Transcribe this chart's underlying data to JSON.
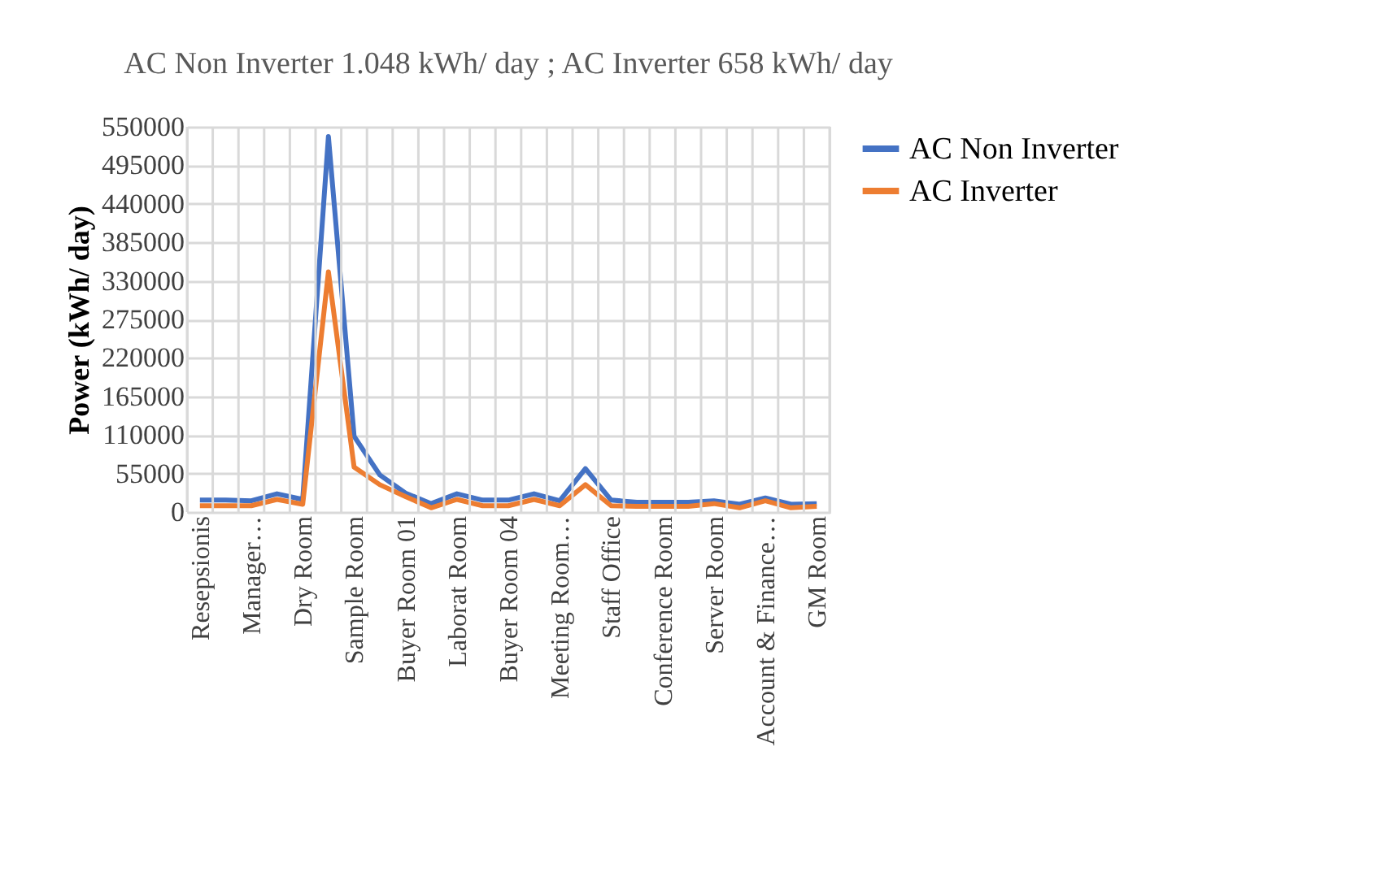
{
  "chart_data": {
    "type": "line",
    "title": "AC Non Inverter  1.048 kWh/ day ; AC Inverter  658 kWh/ day",
    "ylabel": "Power (kWh/ day)",
    "categories": [
      "Resepsionis",
      null,
      "Manager…",
      null,
      "Dry Room",
      null,
      "Sample Room",
      null,
      "Buyer Room 01",
      null,
      "Laborat Room",
      null,
      "Buyer Room 04",
      null,
      "Meeting Room…",
      null,
      "Staff Office",
      null,
      "Conference Room",
      null,
      "Server Room",
      null,
      "Account & Finance…",
      null,
      "GM Room"
    ],
    "series": [
      {
        "name": "AC Non Inverter",
        "color": "#4472c4",
        "values": [
          17000,
          17000,
          16000,
          26000,
          18000,
          536000,
          108000,
          53000,
          27000,
          12000,
          26000,
          17000,
          17000,
          26000,
          16000,
          62000,
          17000,
          14000,
          14000,
          14000,
          16000,
          11000,
          20000,
          11000,
          12000
        ]
      },
      {
        "name": "AC Inverter",
        "color": "#ed7d31",
        "values": [
          9000,
          9000,
          9000,
          18000,
          11000,
          343000,
          64000,
          39000,
          22000,
          6000,
          18000,
          9000,
          9000,
          18000,
          9000,
          39000,
          9000,
          8000,
          8000,
          8000,
          12000,
          6000,
          16000,
          6000,
          8000
        ]
      }
    ],
    "ylim": [
      0,
      550000
    ],
    "yticks": [
      0,
      55000,
      110000,
      165000,
      220000,
      275000,
      330000,
      385000,
      440000,
      495000,
      550000
    ],
    "grid": true,
    "legend": "right",
    "marker": "none",
    "line_style": "solid"
  }
}
